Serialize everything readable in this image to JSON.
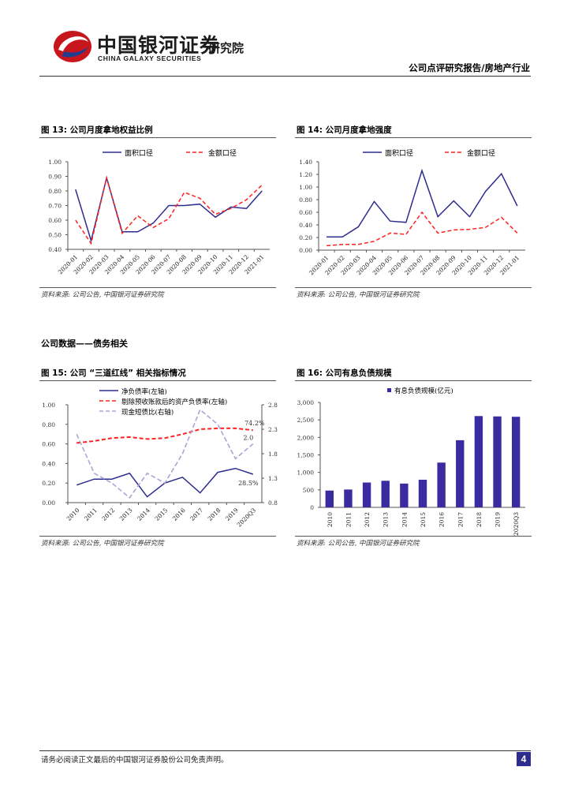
{
  "header": {
    "logo_cn": "中国银河证券",
    "logo_en": "CHINA GALAXY SECURITIES",
    "logo_dept": "研究院",
    "report_type": "公司点评研究报告/房地产行业"
  },
  "section_title": "公司数据——债务相关",
  "figures": {
    "fig13": {
      "title": "图 13:  公司月度拿地权益比例",
      "source": "资料来源: 公司公告, 中国银河证券研究院"
    },
    "fig14": {
      "title": "图 14:  公司月度拿地强度",
      "source": "资料来源: 公司公告, 中国银河证券研究院"
    },
    "fig15": {
      "title": "图 15:  公司 “三道红线” 相关指标情况",
      "source": "资料来源: 公司公告, 中国银河证券研究院"
    },
    "fig16": {
      "title": "图 16:  公司有息负债规模",
      "source": "资料来源: 公司公告, 中国银河证券研究院"
    }
  },
  "footer": {
    "disclaimer": "请务必阅读正文最后的中国银河证券股份公司免责声明。",
    "page": "4"
  },
  "colors": {
    "navy": "#2e2c8f",
    "red": "#ff2020",
    "lavender": "#a9a6d6",
    "bar": "#3a2ca0"
  },
  "chart_data": [
    {
      "id": "fig13",
      "type": "line",
      "categories": [
        "2020-01",
        "2020-02",
        "2020-03",
        "2020-04",
        "2020-05",
        "2020-06",
        "2020-07",
        "2020-08",
        "2020-09",
        "2020-10",
        "2020-11",
        "2020-12",
        "2021-01"
      ],
      "series": [
        {
          "name": "面积口径",
          "values": [
            0.81,
            0.46,
            0.89,
            0.52,
            0.52,
            0.58,
            0.7,
            0.7,
            0.71,
            0.62,
            0.69,
            0.68,
            0.8
          ]
        },
        {
          "name": "金额口径",
          "values": [
            0.6,
            0.44,
            0.89,
            0.51,
            0.63,
            0.55,
            0.61,
            0.79,
            0.75,
            0.64,
            0.68,
            0.74,
            0.84
          ]
        }
      ],
      "ylim": [
        0.4,
        1.0
      ],
      "yticks": [
        "0.40",
        "0.50",
        "0.60",
        "0.70",
        "0.80",
        "0.90",
        "1.00"
      ]
    },
    {
      "id": "fig14",
      "type": "line",
      "categories": [
        "2020-01",
        "2020-02",
        "2020-03",
        "2020-04",
        "2020-05",
        "2020-06",
        "2020-07",
        "2020-08",
        "2020-09",
        "2020-10",
        "2020-11",
        "2020-12",
        "2021-01"
      ],
      "series": [
        {
          "name": "面积口径",
          "values": [
            0.21,
            0.21,
            0.37,
            0.77,
            0.46,
            0.44,
            1.26,
            0.53,
            0.78,
            0.53,
            0.93,
            1.21,
            0.7
          ]
        },
        {
          "name": "金额口径",
          "values": [
            0.07,
            0.09,
            0.09,
            0.14,
            0.27,
            0.25,
            0.6,
            0.27,
            0.32,
            0.33,
            0.36,
            0.52,
            0.27
          ]
        }
      ],
      "ylim": [
        0.0,
        1.4
      ],
      "yticks": [
        "0.00",
        "0.20",
        "0.40",
        "0.60",
        "0.80",
        "1.00",
        "1.20",
        "1.40"
      ]
    },
    {
      "id": "fig15",
      "type": "line",
      "categories": [
        "2010",
        "2011",
        "2012",
        "2013",
        "2014",
        "2015",
        "2016",
        "2017",
        "2018",
        "2019",
        "2020Q3"
      ],
      "series": [
        {
          "name": "净负债率(左轴)",
          "axis": "left",
          "values": [
            0.18,
            0.24,
            0.24,
            0.3,
            0.06,
            0.2,
            0.26,
            0.1,
            0.31,
            0.35,
            0.29
          ]
        },
        {
          "name": "剔除预收账款后的资产负债率(左轴)",
          "axis": "left",
          "values": [
            0.61,
            0.63,
            0.66,
            0.67,
            0.65,
            0.66,
            0.7,
            0.75,
            0.76,
            0.76,
            0.74
          ]
        },
        {
          "name": "现金短债比(右轴)",
          "axis": "right",
          "values": [
            2.2,
            1.4,
            1.2,
            0.9,
            1.4,
            1.2,
            1.8,
            2.7,
            2.4,
            1.7,
            2.0
          ]
        }
      ],
      "ylim_left": [
        0.0,
        1.0
      ],
      "yticks_left": [
        "0.00",
        "0.20",
        "0.40",
        "0.60",
        "0.80",
        "1.00"
      ],
      "ylim_right": [
        0.8,
        2.8
      ],
      "yticks_right": [
        "0.8",
        "1.3",
        "1.8",
        "2.3",
        "2.8"
      ],
      "annotations": [
        "74.2%",
        "2.0",
        "28.5%"
      ]
    },
    {
      "id": "fig16",
      "type": "bar",
      "categories": [
        "2010",
        "2011",
        "2012",
        "2013",
        "2014",
        "2015",
        "2016",
        "2017",
        "2018",
        "2019",
        "2020Q3"
      ],
      "series": [
        {
          "name": "有息负债规模(亿元)",
          "values": [
            480,
            510,
            710,
            760,
            680,
            790,
            1280,
            1920,
            2610,
            2600,
            2590
          ]
        }
      ],
      "ylim": [
        0,
        3000
      ],
      "yticks": [
        "0",
        "500",
        "1,000",
        "1,500",
        "2,000",
        "2,500",
        "3,000"
      ]
    }
  ]
}
